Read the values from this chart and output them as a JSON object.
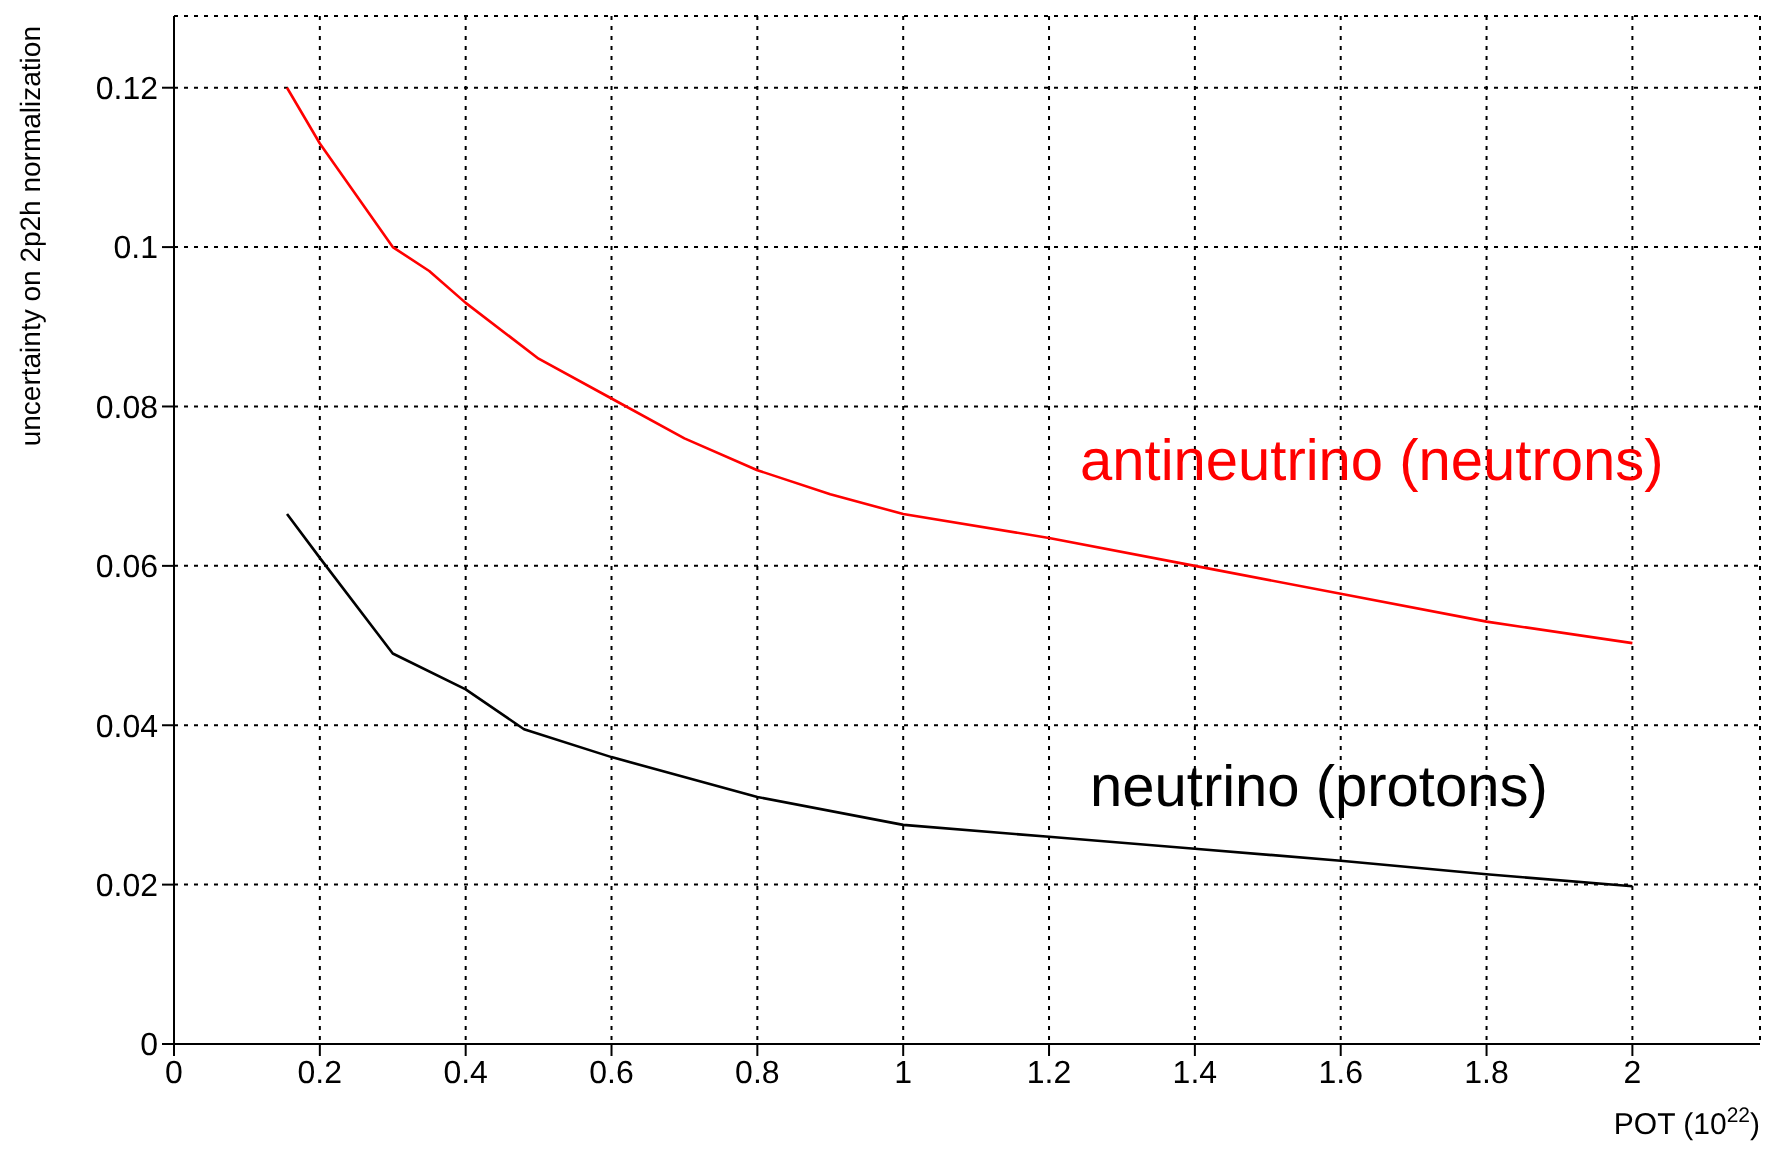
{
  "chart_data": {
    "type": "line",
    "xlabel": "POT (10$^{22}$)",
    "ylabel": "uncertainty on 2p2h normalization",
    "xlim": [
      0,
      2.175
    ],
    "ylim": [
      0,
      0.129
    ],
    "xticks": [
      0,
      0.2,
      0.4,
      0.6,
      0.8,
      1,
      1.2,
      1.4,
      1.6,
      1.8,
      2
    ],
    "yticks": [
      0,
      0.02,
      0.04,
      0.06,
      0.08,
      0.1,
      0.12
    ],
    "grid": true,
    "legend": false,
    "marker": "none",
    "line_style": "solid",
    "series": [
      {
        "name": "antineutrino (neutrons)",
        "color": "#ff0000",
        "x": [
          0.155,
          0.2,
          0.3,
          0.35,
          0.4,
          0.5,
          0.6,
          0.7,
          0.8,
          0.9,
          1.0,
          1.2,
          1.4,
          1.6,
          1.8,
          2.0
        ],
        "values": [
          0.12,
          0.113,
          0.1,
          0.097,
          0.093,
          0.086,
          0.081,
          0.076,
          0.072,
          0.069,
          0.0665,
          0.0635,
          0.06,
          0.0565,
          0.053,
          0.0503
        ]
      },
      {
        "name": "neutrino (protons)",
        "color": "#000000",
        "x": [
          0.155,
          0.2,
          0.3,
          0.4,
          0.48,
          0.6,
          0.8,
          1.0,
          1.2,
          1.4,
          1.6,
          1.8,
          2.0
        ],
        "values": [
          0.0665,
          0.061,
          0.049,
          0.0445,
          0.0395,
          0.036,
          0.031,
          0.0275,
          0.026,
          0.0245,
          0.023,
          0.0213,
          0.0198
        ]
      }
    ]
  }
}
